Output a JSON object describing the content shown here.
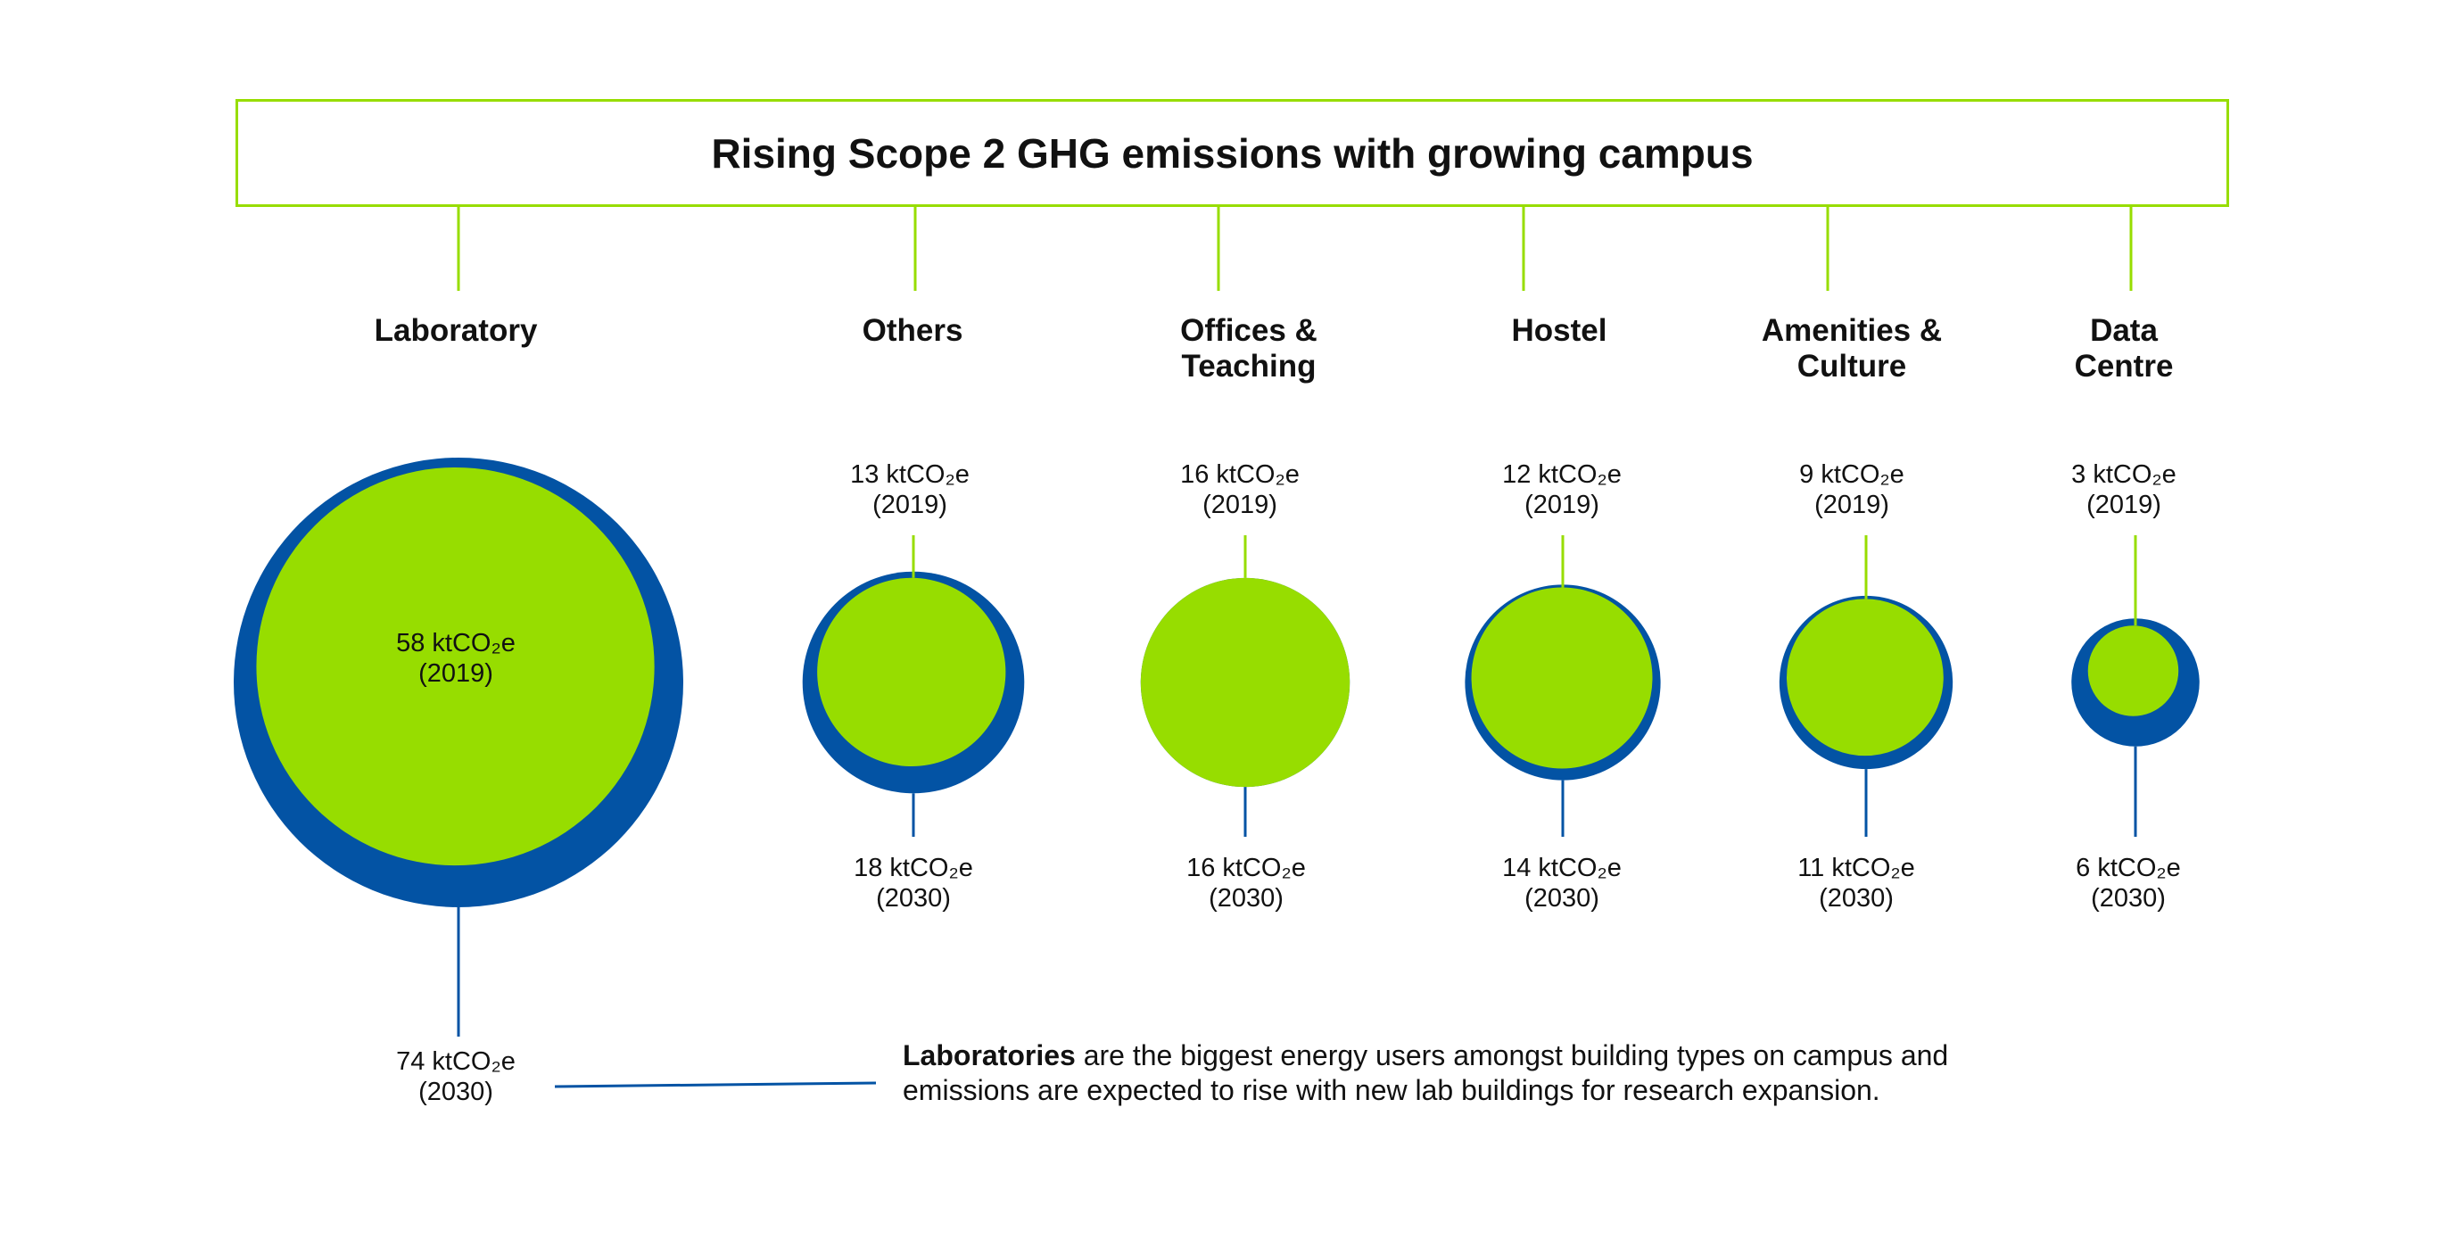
{
  "title": "Rising Scope 2 GHG emissions with growing campus",
  "colors": {
    "frame": "#97dd00",
    "year_2019": "#97dd00",
    "year_2030": "#0353a4",
    "text": "#111111"
  },
  "chart_data": {
    "type": "bubble",
    "unit": "ktCO₂e",
    "years": [
      "2019",
      "2030"
    ],
    "categories": [
      {
        "name": "Laboratory",
        "v2019": 58,
        "v2030": 74,
        "label_2019": "58 ktCO₂e",
        "year_2019": "(2019)",
        "label_2030": "74 ktCO₂e",
        "year_2030": "(2030)"
      },
      {
        "name": "Others",
        "v2019": 13,
        "v2030": 18,
        "label_2019": "13 ktCO₂e",
        "year_2019": "(2019)",
        "label_2030": "18 ktCO₂e",
        "year_2030": "(2030)"
      },
      {
        "name": "Offices & Teaching",
        "v2019": 16,
        "v2030": 16,
        "label_2019": "16 ktCO₂e",
        "year_2019": "(2019)",
        "label_2030": "16 ktCO₂e",
        "year_2030": "(2030)"
      },
      {
        "name": "Hostel",
        "v2019": 12,
        "v2030": 14,
        "label_2019": "12 ktCO₂e",
        "year_2019": "(2019)",
        "label_2030": "14 ktCO₂e",
        "year_2030": "(2030)"
      },
      {
        "name": "Amenities & Culture",
        "v2019": 9,
        "v2030": 11,
        "label_2019": "9 ktCO₂e",
        "year_2019": "(2019)",
        "label_2030": "11 ktCO₂e",
        "year_2030": "(2030)"
      },
      {
        "name": "Data Centre",
        "v2019": 3,
        "v2030": 6,
        "label_2019": "3 ktCO₂e",
        "year_2019": "(2019)",
        "label_2030": "6 ktCO₂e",
        "year_2030": "(2030)"
      }
    ]
  },
  "labels": {
    "laboratory": [
      "Laboratory"
    ],
    "others": [
      "Others"
    ],
    "offices": [
      "Offices &",
      "Teaching"
    ],
    "hostel": [
      "Hostel"
    ],
    "amenities": [
      "Amenities &",
      "Culture"
    ],
    "datacentre": [
      "Data",
      "Centre"
    ]
  },
  "note": {
    "bold": "Laboratories",
    "line1": " are the biggest energy users amongst building types on campus and",
    "line2": "emissions are expected to rise with new lab buildings for research expansion."
  }
}
